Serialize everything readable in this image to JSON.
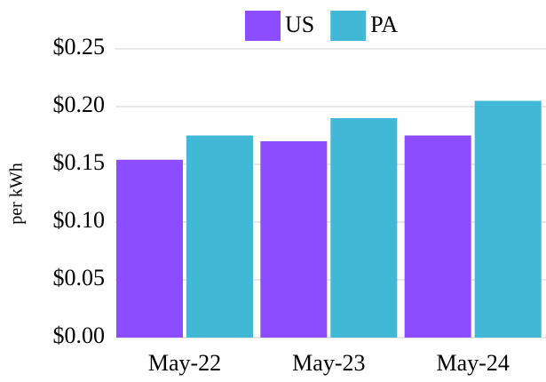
{
  "chart_data": {
    "type": "bar",
    "y_label": "per kWh",
    "categories": [
      "May-22",
      "May-23",
      "May-24"
    ],
    "series": [
      {
        "name": "US",
        "color": "#8b4dff",
        "values": [
          0.154,
          0.17,
          0.175
        ]
      },
      {
        "name": "PA",
        "color": "#41b8d5",
        "values": [
          0.175,
          0.19,
          0.205
        ]
      }
    ],
    "ylim": [
      0,
      0.25
    ],
    "yticks": [
      {
        "value": 0,
        "label": "$0.00"
      },
      {
        "value": 0.05,
        "label": "$0.05"
      },
      {
        "value": 0.1,
        "label": "$0.10"
      },
      {
        "value": 0.15,
        "label": "$0.15"
      },
      {
        "value": 0.2,
        "label": "$0.20"
      },
      {
        "value": 0.25,
        "label": "$0.25"
      }
    ],
    "grid": true,
    "legend": "top"
  }
}
